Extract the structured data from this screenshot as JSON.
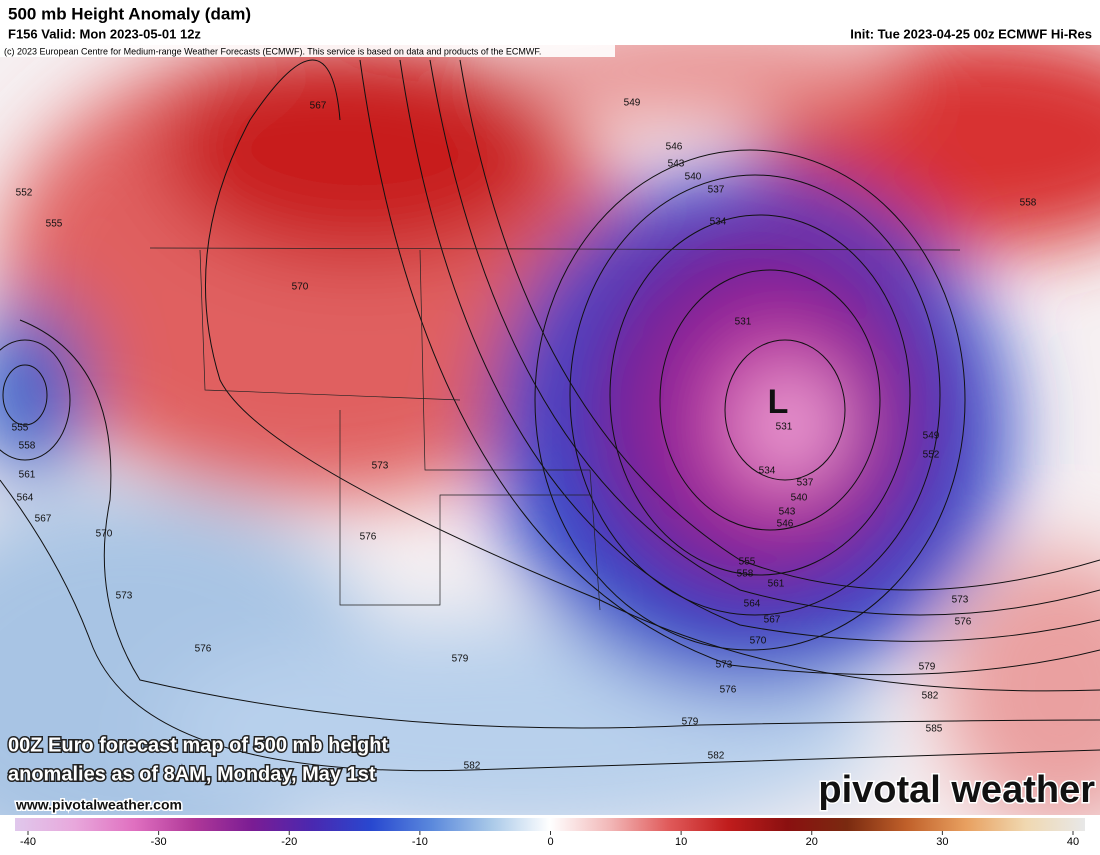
{
  "header": {
    "title": "500 mb Height Anomaly (dam)",
    "valid": "F156 Valid: Mon 2023-05-01 12z",
    "init": "Init: Tue 2023-04-25 00z ECMWF Hi-Res",
    "copyright": "(c) 2023 European Centre for Medium-range Weather Forecasts (ECMWF). This service is based on data and products of the ECMWF."
  },
  "map": {
    "low_marker": "L",
    "contour_labels": [
      567,
      549,
      546,
      543,
      540,
      537,
      534,
      552,
      555,
      570,
      531,
      531,
      555,
      558,
      561,
      564,
      567,
      570,
      573,
      576,
      534,
      537,
      540,
      543,
      546,
      549,
      552,
      555,
      558,
      561,
      564,
      567,
      570,
      573,
      576,
      579,
      582,
      573,
      576,
      579,
      582,
      585,
      573,
      576,
      579,
      582,
      558
    ]
  },
  "caption": {
    "lines": [
      "00Z Euro forecast map of 500 mb height",
      "anomalies as of 8AM, Monday, May 1st"
    ],
    "website": "www.pivotalweather.com"
  },
  "logo": "pivotal weather",
  "colorbar": {
    "range": [
      -40,
      40
    ],
    "ticks": [
      -40,
      -30,
      -20,
      -10,
      0,
      10,
      20,
      30,
      40
    ],
    "colors": [
      "#e0c8ec",
      "#e8a8dc",
      "#e070c0",
      "#b03898",
      "#7a1c94",
      "#4a28b0",
      "#2848d0",
      "#5a88dc",
      "#a8c8e8",
      "#ffffff",
      "#f2b8b8",
      "#e05a5a",
      "#c01c1c",
      "#8a1010",
      "#7a2a10",
      "#c0602a",
      "#e8a060",
      "#f0d8b0",
      "#e8e8e8"
    ]
  }
}
